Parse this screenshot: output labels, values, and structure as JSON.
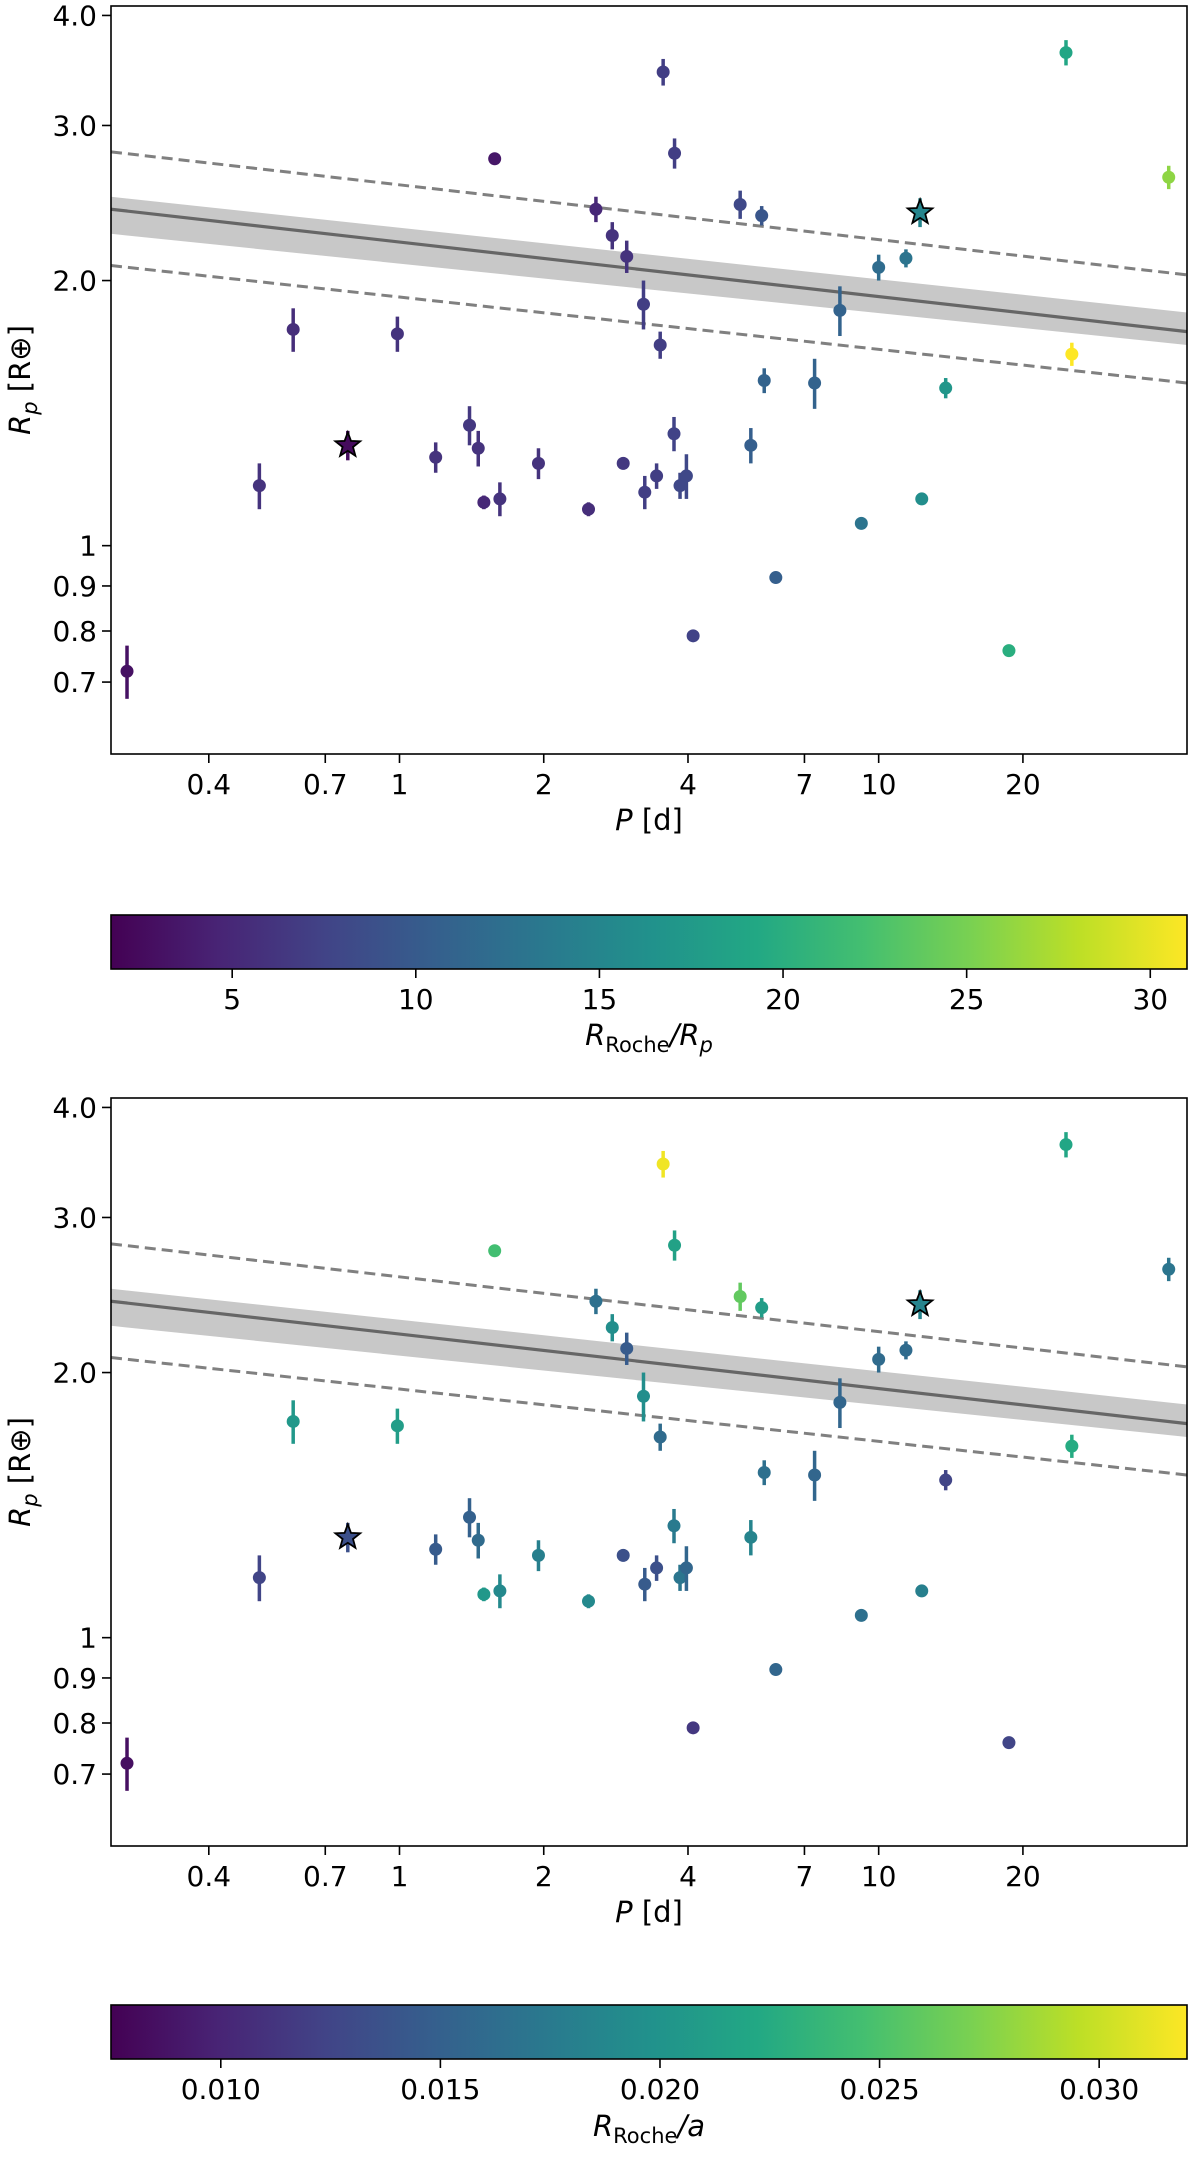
{
  "chart_data": [
    {
      "type": "scatter",
      "xscale": "log",
      "yscale": "log",
      "xlim": [
        0.25,
        44
      ],
      "ylim": [
        0.58,
        4.1
      ],
      "xticks": [
        0.4,
        0.7,
        1,
        2,
        4,
        7,
        10,
        20
      ],
      "xtick_labels": [
        "0.4",
        "0.7",
        "1",
        "2",
        "4",
        "7",
        "10",
        "20"
      ],
      "yticks": [
        0.7,
        0.8,
        0.9,
        1,
        2,
        3,
        4
      ],
      "ytick_labels": [
        "0.7",
        "0.8",
        "0.9",
        "1",
        "2.0",
        "3.0",
        "4.0"
      ],
      "xlabel": {
        "main": "P",
        "unit": " [d]"
      },
      "ylabel": {
        "main": "R",
        "sub": "p",
        "unit": " [R⊕]"
      },
      "grid": false,
      "fit_line": {
        "x": [
          0.25,
          44
        ],
        "y": [
          2.41,
          1.75
        ]
      },
      "fit_band": {
        "x": [
          0.25,
          44
        ],
        "y_low": [
          2.26,
          1.69
        ],
        "y_high": [
          2.49,
          1.84
        ]
      },
      "dashed_upper": {
        "x": [
          0.25,
          44
        ],
        "y": [
          2.8,
          2.03
        ]
      },
      "dashed_lower": {
        "x": [
          0.25,
          44
        ],
        "y": [
          2.08,
          1.53
        ]
      },
      "points": [
        {
          "x": 0.27,
          "y": 0.72,
          "yerr": 0.05,
          "c": 3.0,
          "marker": "o"
        },
        {
          "x": 0.51,
          "y": 1.17,
          "yerr": 0.07,
          "c": 6.0,
          "marker": "o"
        },
        {
          "x": 0.6,
          "y": 1.76,
          "yerr": 0.1,
          "c": 5.5,
          "marker": "o"
        },
        {
          "x": 0.78,
          "y": 1.3,
          "yerr": 0.05,
          "c": 2.5,
          "marker": "star"
        },
        {
          "x": 0.99,
          "y": 1.74,
          "yerr": 0.08,
          "c": 6.0,
          "marker": "o"
        },
        {
          "x": 1.19,
          "y": 1.26,
          "yerr": 0.05,
          "c": 6.0,
          "marker": "o"
        },
        {
          "x": 1.4,
          "y": 1.37,
          "yerr": 0.07,
          "c": 6.5,
          "marker": "o"
        },
        {
          "x": 1.46,
          "y": 1.29,
          "yerr": 0.06,
          "c": 6.0,
          "marker": "o"
        },
        {
          "x": 1.5,
          "y": 1.12,
          "yerr": 0.02,
          "c": 5.0,
          "marker": "o"
        },
        {
          "x": 1.58,
          "y": 2.75,
          "yerr": 0.04,
          "c": 3.5,
          "marker": "o"
        },
        {
          "x": 1.62,
          "y": 1.13,
          "yerr": 0.05,
          "c": 6.0,
          "marker": "o"
        },
        {
          "x": 1.95,
          "y": 1.24,
          "yerr": 0.05,
          "c": 6.0,
          "marker": "o"
        },
        {
          "x": 2.48,
          "y": 1.1,
          "yerr": 0.02,
          "c": 5.5,
          "marker": "o"
        },
        {
          "x": 2.57,
          "y": 2.41,
          "yerr": 0.08,
          "c": 5.0,
          "marker": "o"
        },
        {
          "x": 2.78,
          "y": 2.25,
          "yerr": 0.08,
          "c": 6.0,
          "marker": "o"
        },
        {
          "x": 2.93,
          "y": 1.24,
          "yerr": 0.02,
          "c": 6.5,
          "marker": "o"
        },
        {
          "x": 2.98,
          "y": 2.13,
          "yerr": 0.09,
          "c": 6.0,
          "marker": "o"
        },
        {
          "x": 3.23,
          "y": 1.88,
          "yerr": 0.12,
          "c": 7.0,
          "marker": "o"
        },
        {
          "x": 3.25,
          "y": 1.15,
          "yerr": 0.05,
          "c": 7.0,
          "marker": "o"
        },
        {
          "x": 3.44,
          "y": 1.2,
          "yerr": 0.04,
          "c": 7.0,
          "marker": "o"
        },
        {
          "x": 3.5,
          "y": 1.69,
          "yerr": 0.06,
          "c": 7.0,
          "marker": "o"
        },
        {
          "x": 3.55,
          "y": 3.45,
          "yerr": 0.12,
          "c": 7.0,
          "marker": "o"
        },
        {
          "x": 3.74,
          "y": 1.34,
          "yerr": 0.06,
          "c": 7.5,
          "marker": "o"
        },
        {
          "x": 3.75,
          "y": 2.79,
          "yerr": 0.11,
          "c": 7.0,
          "marker": "o"
        },
        {
          "x": 3.85,
          "y": 1.17,
          "yerr": 0.04,
          "c": 8.0,
          "marker": "o"
        },
        {
          "x": 3.97,
          "y": 1.2,
          "yerr": 0.07,
          "c": 8.0,
          "marker": "o"
        },
        {
          "x": 4.1,
          "y": 0.79,
          "yerr": 0.01,
          "c": 7.5,
          "marker": "o"
        },
        {
          "x": 5.14,
          "y": 2.44,
          "yerr": 0.09,
          "c": 8.0,
          "marker": "o"
        },
        {
          "x": 5.41,
          "y": 1.3,
          "yerr": 0.06,
          "c": 10.5,
          "marker": "o"
        },
        {
          "x": 5.7,
          "y": 2.37,
          "yerr": 0.06,
          "c": 9.5,
          "marker": "o"
        },
        {
          "x": 5.77,
          "y": 1.54,
          "yerr": 0.05,
          "c": 11.0,
          "marker": "o"
        },
        {
          "x": 6.1,
          "y": 0.92,
          "yerr": 0.01,
          "c": 10.5,
          "marker": "o"
        },
        {
          "x": 7.35,
          "y": 1.53,
          "yerr": 0.1,
          "c": 11.0,
          "marker": "o"
        },
        {
          "x": 8.3,
          "y": 1.85,
          "yerr": 0.12,
          "c": 11.0,
          "marker": "o"
        },
        {
          "x": 9.2,
          "y": 1.06,
          "yerr": 0.01,
          "c": 13.0,
          "marker": "o"
        },
        {
          "x": 10.0,
          "y": 2.07,
          "yerr": 0.07,
          "c": 12.0,
          "marker": "o"
        },
        {
          "x": 11.4,
          "y": 2.12,
          "yerr": 0.05,
          "c": 13.0,
          "marker": "o"
        },
        {
          "x": 12.2,
          "y": 2.39,
          "yerr": 0.09,
          "c": 15.0,
          "marker": "star"
        },
        {
          "x": 12.3,
          "y": 1.13,
          "yerr": 0.01,
          "c": 16.0,
          "marker": "o"
        },
        {
          "x": 13.8,
          "y": 1.51,
          "yerr": 0.04,
          "c": 17.0,
          "marker": "o"
        },
        {
          "x": 18.7,
          "y": 0.76,
          "yerr": 0.01,
          "c": 20.0,
          "marker": "o"
        },
        {
          "x": 24.6,
          "y": 3.63,
          "yerr": 0.12,
          "c": 19.0,
          "marker": "o"
        },
        {
          "x": 25.3,
          "y": 1.65,
          "yerr": 0.05,
          "c": 31.0,
          "marker": "o"
        },
        {
          "x": 40.3,
          "y": 2.62,
          "yerr": 0.08,
          "c": 26.0,
          "marker": "o"
        }
      ]
    },
    {
      "type": "colorbar",
      "colormap": "viridis",
      "range": [
        1.7,
        31.0
      ],
      "ticks": [
        5,
        10,
        15,
        20,
        25,
        30
      ],
      "tick_labels": [
        "5",
        "10",
        "15",
        "20",
        "25",
        "30"
      ],
      "label": {
        "main": "R",
        "sub": "Roche",
        "rest": "/R",
        "sub2": "p"
      }
    },
    {
      "type": "scatter",
      "xscale": "log",
      "yscale": "log",
      "xlim": [
        0.25,
        44
      ],
      "ylim": [
        0.58,
        4.1
      ],
      "xticks": [
        0.4,
        0.7,
        1,
        2,
        4,
        7,
        10,
        20
      ],
      "xtick_labels": [
        "0.4",
        "0.7",
        "1",
        "2",
        "4",
        "7",
        "10",
        "20"
      ],
      "yticks": [
        0.7,
        0.8,
        0.9,
        1,
        2,
        3,
        4
      ],
      "ytick_labels": [
        "0.7",
        "0.8",
        "0.9",
        "1",
        "2.0",
        "3.0",
        "4.0"
      ],
      "xlabel": {
        "main": "P",
        "unit": " [d]"
      },
      "ylabel": {
        "main": "R",
        "sub": "p",
        "unit": " [R⊕]"
      },
      "grid": false,
      "fit_line": {
        "x": [
          0.25,
          44
        ],
        "y": [
          2.41,
          1.75
        ]
      },
      "fit_band": {
        "x": [
          0.25,
          44
        ],
        "y_low": [
          2.26,
          1.69
        ],
        "y_high": [
          2.49,
          1.84
        ]
      },
      "dashed_upper": {
        "x": [
          0.25,
          44
        ],
        "y": [
          2.8,
          2.03
        ]
      },
      "dashed_lower": {
        "x": [
          0.25,
          44
        ],
        "y": [
          2.08,
          1.53
        ]
      },
      "points": [
        {
          "x": 0.27,
          "y": 0.72,
          "yerr": 0.05,
          "c": 0.0085,
          "marker": "o"
        },
        {
          "x": 0.51,
          "y": 1.17,
          "yerr": 0.07,
          "c": 0.0125,
          "marker": "o"
        },
        {
          "x": 0.6,
          "y": 1.76,
          "yerr": 0.1,
          "c": 0.0205,
          "marker": "o"
        },
        {
          "x": 0.78,
          "y": 1.3,
          "yerr": 0.05,
          "c": 0.0135,
          "marker": "star"
        },
        {
          "x": 0.99,
          "y": 1.74,
          "yerr": 0.08,
          "c": 0.021,
          "marker": "o"
        },
        {
          "x": 1.19,
          "y": 1.26,
          "yerr": 0.05,
          "c": 0.0145,
          "marker": "o"
        },
        {
          "x": 1.4,
          "y": 1.37,
          "yerr": 0.07,
          "c": 0.015,
          "marker": "o"
        },
        {
          "x": 1.46,
          "y": 1.29,
          "yerr": 0.06,
          "c": 0.016,
          "marker": "o"
        },
        {
          "x": 1.5,
          "y": 1.12,
          "yerr": 0.02,
          "c": 0.0205,
          "marker": "o"
        },
        {
          "x": 1.58,
          "y": 2.75,
          "yerr": 0.04,
          "c": 0.0245,
          "marker": "o"
        },
        {
          "x": 1.62,
          "y": 1.13,
          "yerr": 0.05,
          "c": 0.019,
          "marker": "o"
        },
        {
          "x": 1.95,
          "y": 1.24,
          "yerr": 0.05,
          "c": 0.018,
          "marker": "o"
        },
        {
          "x": 2.48,
          "y": 1.1,
          "yerr": 0.02,
          "c": 0.019,
          "marker": "o"
        },
        {
          "x": 2.57,
          "y": 2.41,
          "yerr": 0.08,
          "c": 0.0165,
          "marker": "o"
        },
        {
          "x": 2.78,
          "y": 2.25,
          "yerr": 0.08,
          "c": 0.0195,
          "marker": "o"
        },
        {
          "x": 2.93,
          "y": 1.24,
          "yerr": 0.02,
          "c": 0.0135,
          "marker": "o"
        },
        {
          "x": 2.98,
          "y": 2.13,
          "yerr": 0.09,
          "c": 0.0145,
          "marker": "o"
        },
        {
          "x": 3.23,
          "y": 1.88,
          "yerr": 0.12,
          "c": 0.0195,
          "marker": "o"
        },
        {
          "x": 3.25,
          "y": 1.15,
          "yerr": 0.05,
          "c": 0.0145,
          "marker": "o"
        },
        {
          "x": 3.44,
          "y": 1.2,
          "yerr": 0.04,
          "c": 0.0135,
          "marker": "o"
        },
        {
          "x": 3.5,
          "y": 1.69,
          "yerr": 0.06,
          "c": 0.016,
          "marker": "o"
        },
        {
          "x": 3.55,
          "y": 3.45,
          "yerr": 0.12,
          "c": 0.0315,
          "marker": "o"
        },
        {
          "x": 3.74,
          "y": 1.34,
          "yerr": 0.06,
          "c": 0.0175,
          "marker": "o"
        },
        {
          "x": 3.75,
          "y": 2.79,
          "yerr": 0.11,
          "c": 0.0215,
          "marker": "o"
        },
        {
          "x": 3.85,
          "y": 1.17,
          "yerr": 0.04,
          "c": 0.017,
          "marker": "o"
        },
        {
          "x": 3.97,
          "y": 1.2,
          "yerr": 0.07,
          "c": 0.0155,
          "marker": "o"
        },
        {
          "x": 4.1,
          "y": 0.79,
          "yerr": 0.01,
          "c": 0.0115,
          "marker": "o"
        },
        {
          "x": 5.14,
          "y": 2.44,
          "yerr": 0.09,
          "c": 0.026,
          "marker": "o"
        },
        {
          "x": 5.41,
          "y": 1.3,
          "yerr": 0.06,
          "c": 0.0185,
          "marker": "o"
        },
        {
          "x": 5.7,
          "y": 2.37,
          "yerr": 0.06,
          "c": 0.021,
          "marker": "o"
        },
        {
          "x": 5.77,
          "y": 1.54,
          "yerr": 0.05,
          "c": 0.0165,
          "marker": "o"
        },
        {
          "x": 6.1,
          "y": 0.92,
          "yerr": 0.01,
          "c": 0.0155,
          "marker": "o"
        },
        {
          "x": 7.35,
          "y": 1.53,
          "yerr": 0.1,
          "c": 0.0155,
          "marker": "o"
        },
        {
          "x": 8.3,
          "y": 1.85,
          "yerr": 0.12,
          "c": 0.0155,
          "marker": "o"
        },
        {
          "x": 9.2,
          "y": 1.06,
          "yerr": 0.01,
          "c": 0.0165,
          "marker": "o"
        },
        {
          "x": 10.0,
          "y": 2.07,
          "yerr": 0.07,
          "c": 0.016,
          "marker": "o"
        },
        {
          "x": 11.4,
          "y": 2.12,
          "yerr": 0.05,
          "c": 0.016,
          "marker": "o"
        },
        {
          "x": 12.2,
          "y": 2.39,
          "yerr": 0.09,
          "c": 0.0185,
          "marker": "star"
        },
        {
          "x": 12.3,
          "y": 1.13,
          "yerr": 0.01,
          "c": 0.018,
          "marker": "o"
        },
        {
          "x": 13.8,
          "y": 1.51,
          "yerr": 0.04,
          "c": 0.0125,
          "marker": "o"
        },
        {
          "x": 18.7,
          "y": 0.76,
          "yerr": 0.01,
          "c": 0.0125,
          "marker": "o"
        },
        {
          "x": 24.6,
          "y": 3.63,
          "yerr": 0.12,
          "c": 0.022,
          "marker": "o"
        },
        {
          "x": 25.3,
          "y": 1.65,
          "yerr": 0.05,
          "c": 0.0225,
          "marker": "o"
        },
        {
          "x": 40.3,
          "y": 2.62,
          "yerr": 0.08,
          "c": 0.017,
          "marker": "o"
        }
      ]
    },
    {
      "type": "colorbar",
      "colormap": "viridis",
      "range": [
        0.0075,
        0.032
      ],
      "ticks": [
        0.01,
        0.015,
        0.02,
        0.025,
        0.03
      ],
      "tick_labels": [
        "0.010",
        "0.015",
        "0.020",
        "0.025",
        "0.030"
      ],
      "label": {
        "main": "R",
        "sub": "Roche",
        "rest": "/a",
        "sub2": ""
      }
    }
  ]
}
